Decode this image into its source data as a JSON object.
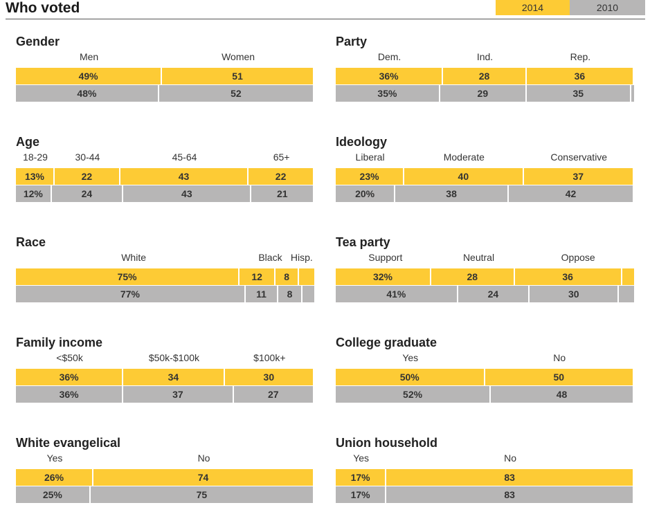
{
  "header": {
    "title": "Who voted"
  },
  "years": [
    "2014",
    "2010"
  ],
  "colors": {
    "y2014": "#fdcb35",
    "y2010": "#b7b6b6",
    "active_tab": "#fdcb35",
    "inactive_tab": "#b7b6b6"
  },
  "chart_data": [
    {
      "type": "bar",
      "title": "Gender",
      "categories": [
        "Men",
        "Women"
      ],
      "series": [
        {
          "name": "2014",
          "values": [
            49,
            51
          ],
          "labels": [
            "49%",
            "51"
          ]
        },
        {
          "name": "2010",
          "values": [
            48,
            52
          ],
          "labels": [
            "48%",
            "52"
          ]
        }
      ]
    },
    {
      "type": "bar",
      "title": "Party",
      "categories": [
        "Dem.",
        "Ind.",
        "Rep."
      ],
      "series": [
        {
          "name": "2014",
          "values": [
            36,
            28,
            36
          ],
          "labels": [
            "36%",
            "28",
            "36"
          ]
        },
        {
          "name": "2010",
          "values": [
            35,
            29,
            35
          ],
          "labels": [
            "35%",
            "29",
            "35"
          ]
        }
      ]
    },
    {
      "type": "bar",
      "title": "Age",
      "categories": [
        "18-29",
        "30-44",
        "45-64",
        "65+"
      ],
      "series": [
        {
          "name": "2014",
          "values": [
            13,
            22,
            43,
            22
          ],
          "labels": [
            "13%",
            "22",
            "43",
            "22"
          ]
        },
        {
          "name": "2010",
          "values": [
            12,
            24,
            43,
            21
          ],
          "labels": [
            "12%",
            "24",
            "43",
            "21"
          ]
        }
      ]
    },
    {
      "type": "bar",
      "title": "Ideology",
      "categories": [
        "Liberal",
        "Moderate",
        "Conservative"
      ],
      "series": [
        {
          "name": "2014",
          "values": [
            23,
            40,
            37
          ],
          "labels": [
            "23%",
            "40",
            "37"
          ]
        },
        {
          "name": "2010",
          "values": [
            20,
            38,
            42
          ],
          "labels": [
            "20%",
            "38",
            "42"
          ]
        }
      ]
    },
    {
      "type": "bar",
      "title": "Race",
      "categories": [
        "White",
        "Black",
        "Hisp."
      ],
      "series": [
        {
          "name": "2014",
          "values": [
            75,
            12,
            8
          ],
          "labels": [
            "75%",
            "12",
            "8"
          ]
        },
        {
          "name": "2010",
          "values": [
            77,
            11,
            8
          ],
          "labels": [
            "77%",
            "11",
            "8"
          ]
        }
      ]
    },
    {
      "type": "bar",
      "title": "Tea party",
      "categories": [
        "Support",
        "Neutral",
        "Oppose"
      ],
      "series": [
        {
          "name": "2014",
          "values": [
            32,
            28,
            36
          ],
          "labels": [
            "32%",
            "28",
            "36"
          ]
        },
        {
          "name": "2010",
          "values": [
            41,
            24,
            30
          ],
          "labels": [
            "41%",
            "24",
            "30"
          ]
        }
      ]
    },
    {
      "type": "bar",
      "title": "Family income",
      "categories": [
        "<$50k",
        "$50k-$100k",
        "$100k+"
      ],
      "series": [
        {
          "name": "2014",
          "values": [
            36,
            34,
            30
          ],
          "labels": [
            "36%",
            "34",
            "30"
          ]
        },
        {
          "name": "2010",
          "values": [
            36,
            37,
            27
          ],
          "labels": [
            "36%",
            "37",
            "27"
          ]
        }
      ]
    },
    {
      "type": "bar",
      "title": "College graduate",
      "categories": [
        "Yes",
        "No"
      ],
      "series": [
        {
          "name": "2014",
          "values": [
            50,
            50
          ],
          "labels": [
            "50%",
            "50"
          ]
        },
        {
          "name": "2010",
          "values": [
            52,
            48
          ],
          "labels": [
            "52%",
            "48"
          ]
        }
      ]
    },
    {
      "type": "bar",
      "title": "White evangelical",
      "categories": [
        "Yes",
        "No"
      ],
      "series": [
        {
          "name": "2014",
          "values": [
            26,
            74
          ],
          "labels": [
            "26%",
            "74"
          ]
        },
        {
          "name": "2010",
          "values": [
            25,
            75
          ],
          "labels": [
            "25%",
            "75"
          ]
        }
      ]
    },
    {
      "type": "bar",
      "title": "Union household",
      "categories": [
        "Yes",
        "No"
      ],
      "series": [
        {
          "name": "2014",
          "values": [
            17,
            83
          ],
          "labels": [
            "17%",
            "83"
          ]
        },
        {
          "name": "2010",
          "values": [
            17,
            83
          ],
          "labels": [
            "17%",
            "83"
          ]
        }
      ]
    }
  ]
}
